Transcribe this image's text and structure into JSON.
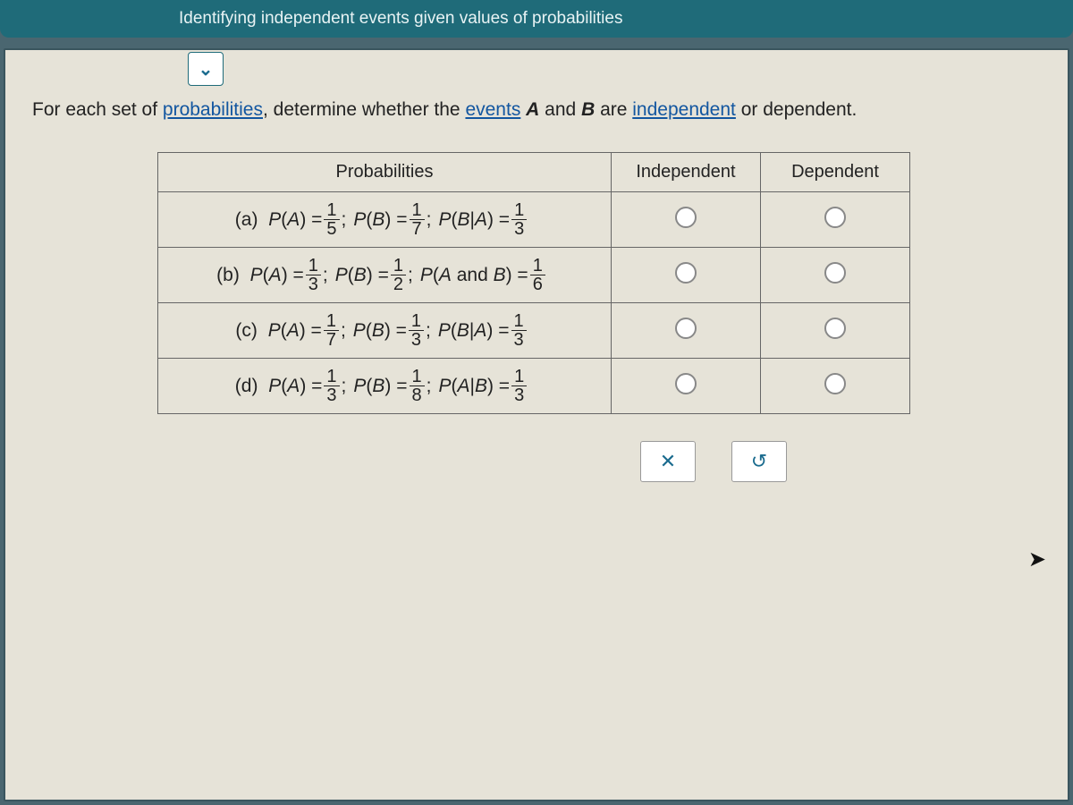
{
  "header": {
    "title": "Identifying independent events given values of probabilities"
  },
  "dropdown_glyph": "⌄",
  "prompt": {
    "p1": "For each set of ",
    "link": "probabilities",
    "p2": ", determine whether the ",
    "events_word": "events",
    "p3": " ",
    "var_a": "A",
    "p4": " and ",
    "var_b": "B",
    "p5": " are ",
    "indep_link": "independent",
    "p6": " or dependent."
  },
  "table": {
    "col_prob": "Probabilities",
    "col_indep": "Independent",
    "col_dep": "Dependent",
    "rows": [
      {
        "label": "(a)",
        "terms": [
          {
            "lhs": "P(A)",
            "num": "1",
            "den": "5",
            "sep": ";"
          },
          {
            "lhs": "P(B)",
            "num": "1",
            "den": "7",
            "sep": ";"
          },
          {
            "lhs": "P(B|A)",
            "num": "1",
            "den": "3",
            "sep": ""
          }
        ]
      },
      {
        "label": "(b)",
        "terms": [
          {
            "lhs": "P(A)",
            "num": "1",
            "den": "3",
            "sep": ";"
          },
          {
            "lhs": "P(B)",
            "num": "1",
            "den": "2",
            "sep": ";"
          },
          {
            "lhs": "P(A and B)",
            "num": "1",
            "den": "6",
            "sep": ""
          }
        ]
      },
      {
        "label": "(c)",
        "terms": [
          {
            "lhs": "P(A)",
            "num": "1",
            "den": "7",
            "sep": ";"
          },
          {
            "lhs": "P(B)",
            "num": "1",
            "den": "3",
            "sep": ";"
          },
          {
            "lhs": "P(B|A)",
            "num": "1",
            "den": "3",
            "sep": ""
          }
        ]
      },
      {
        "label": "(d)",
        "terms": [
          {
            "lhs": "P(A)",
            "num": "1",
            "den": "3",
            "sep": ";"
          },
          {
            "lhs": "P(B)",
            "num": "1",
            "den": "8",
            "sep": ";"
          },
          {
            "lhs": "P(A|B)",
            "num": "1",
            "den": "3",
            "sep": ""
          }
        ]
      }
    ]
  },
  "actions": {
    "clear": "✕",
    "reset": "↺"
  },
  "colors": {
    "outer_bg": "#4a6670",
    "header_bg": "#1f6b79",
    "panel_bg": "#e6e3d8"
  }
}
